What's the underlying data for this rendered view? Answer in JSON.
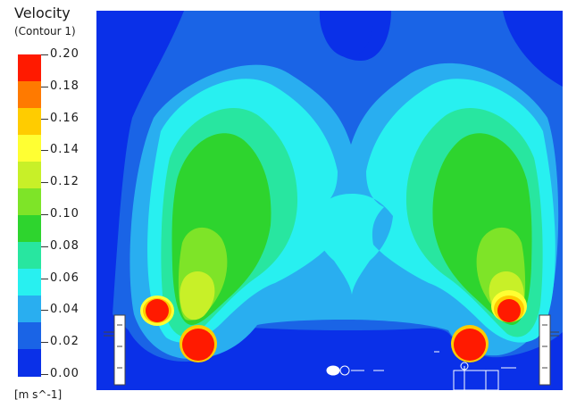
{
  "legend": {
    "title": "Velocity",
    "subtitle": "(Contour  1)",
    "units": "[m  s^-1]",
    "ticks": [
      "0.20",
      "0.18",
      "0.16",
      "0.14",
      "0.12",
      "0.10",
      "0.08",
      "0.06",
      "0.04",
      "0.02",
      "0.00"
    ],
    "band_colors": [
      "#ff1a00",
      "#ff7a00",
      "#ffcc00",
      "#ffff33",
      "#c8f028",
      "#7ee428",
      "#2ed42e",
      "#28e6a0",
      "#28f0f0",
      "#29aef0",
      "#1a64e6",
      "#0a30e8"
    ]
  },
  "contour": {
    "colors": {
      "background": "#0a30e8",
      "level_002": "#1a64e6",
      "level_004": "#29aef0",
      "level_006": "#28f0f0",
      "level_008": "#28e6a0",
      "level_010": "#2ed42e",
      "level_012": "#7ee428",
      "level_014": "#c8f028",
      "level_016": "#ffff33",
      "level_018": "#ffcc00",
      "level_020": "#ff1a00"
    }
  }
}
